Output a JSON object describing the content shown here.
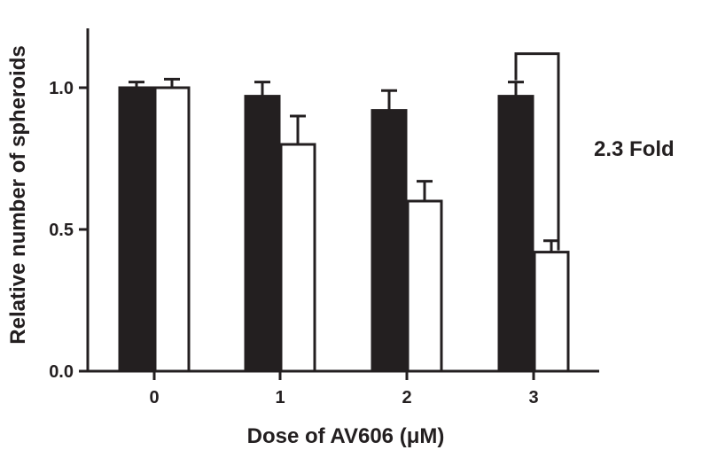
{
  "chart_data": {
    "type": "bar",
    "title": "",
    "xlabel": "Dose of AV606 (μM)",
    "ylabel": "Relative number of spheroids",
    "categories": [
      "0",
      "1",
      "2",
      "3"
    ],
    "ylim": [
      0,
      1.0
    ],
    "yticks": [
      "0.0",
      "0.5",
      "1.0"
    ],
    "grid": false,
    "legend": "none",
    "series": [
      {
        "color": "#231f20",
        "fill": "solid",
        "values": [
          1.0,
          0.97,
          0.92,
          0.97
        ],
        "errors": [
          0.02,
          0.05,
          0.07,
          0.05
        ]
      },
      {
        "color": "#ffffff",
        "fill": "open",
        "values": [
          1.0,
          0.8,
          0.6,
          0.42
        ],
        "errors": [
          0.03,
          0.1,
          0.07,
          0.04
        ]
      }
    ],
    "annotations": [
      {
        "text": "2.3 Fold",
        "category": "3"
      }
    ]
  }
}
